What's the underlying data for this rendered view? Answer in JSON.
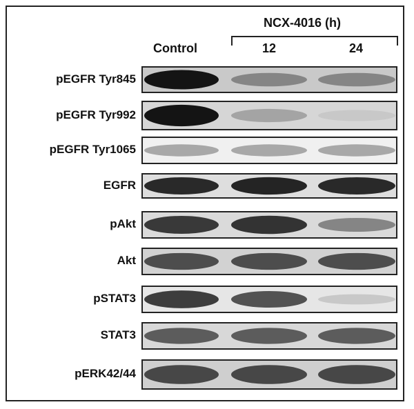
{
  "header": {
    "treatment": "NCX-4016 (h)",
    "columns": [
      "Control",
      "12",
      "24"
    ]
  },
  "rows": [
    {
      "label": "pEGFR Tyr845",
      "bg": "#c9c9c9",
      "intensity": [
        1.0,
        0.45,
        0.45
      ]
    },
    {
      "label": "pEGFR Tyr992",
      "bg": "#d6d6d6",
      "intensity": [
        1.0,
        0.3,
        0.12
      ]
    },
    {
      "label": "pEGFR Tyr1065",
      "bg": "#f0f0f0",
      "intensity": [
        0.28,
        0.28,
        0.28
      ]
    },
    {
      "label": "EGFR",
      "bg": "#dedede",
      "intensity": [
        0.9,
        0.92,
        0.9
      ]
    },
    {
      "label": "pAkt",
      "bg": "#dadada",
      "intensity": [
        0.82,
        0.85,
        0.45
      ]
    },
    {
      "label": "Akt",
      "bg": "#d2d2d2",
      "intensity": [
        0.72,
        0.72,
        0.72
      ]
    },
    {
      "label": "pSTAT3",
      "bg": "#e6e6e6",
      "intensity": [
        0.8,
        0.7,
        0.12
      ]
    },
    {
      "label": "STAT3",
      "bg": "#d8d8d8",
      "intensity": [
        0.65,
        0.65,
        0.65
      ]
    },
    {
      "label": "pERK42/44",
      "bg": "#cfcfcf",
      "intensity": [
        0.75,
        0.75,
        0.75
      ]
    }
  ]
}
